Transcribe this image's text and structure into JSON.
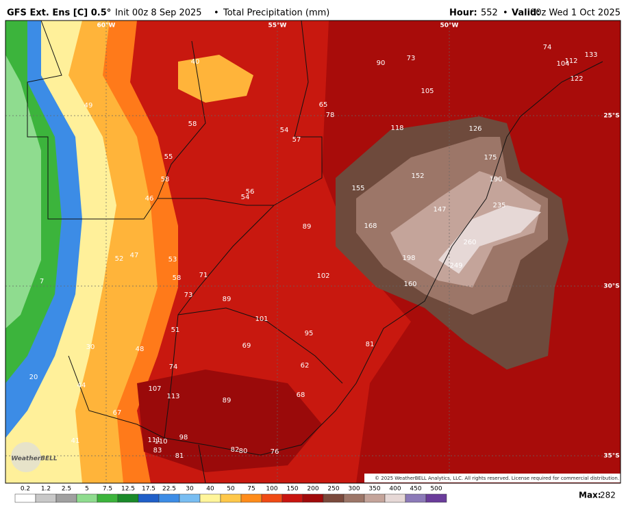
{
  "header": {
    "model": "GFS Ext. Ens [C] 0.5°",
    "init": "Init 00z 8 Sep 2025",
    "product": "Total Precipitation (mm)",
    "hour_label": "Hour:",
    "hour": 552,
    "valid_label": "Valid:",
    "valid": "00z Wed 1 Oct 2025",
    "separator": "•"
  },
  "graticule_labels": [
    "60°W",
    "55°W",
    "50°W",
    "25°S",
    "30°S",
    "35°S"
  ],
  "map_values": [
    40,
    49,
    58,
    55,
    58,
    46,
    54,
    57,
    56,
    54,
    65,
    78,
    90,
    73,
    74,
    133,
    104,
    112,
    122,
    105,
    118,
    126,
    175,
    152,
    155,
    190,
    235,
    147,
    168,
    89,
    260,
    198,
    249,
    52,
    47,
    53,
    58,
    71,
    102,
    160,
    7,
    73,
    89,
    101,
    95,
    51,
    81,
    30,
    48,
    69,
    62,
    74,
    20,
    44,
    107,
    113,
    89,
    68,
    67,
    41,
    111,
    110,
    98,
    83,
    82,
    80,
    76,
    81
  ],
  "logo": "WeatherBELL",
  "copyright": "© 2025 WeatherBELL Analytics, LLC. All rights reserved. License required for commercial distribution.",
  "colorbar": {
    "labels": [
      0.2,
      1.2,
      2.5,
      5,
      7.5,
      12.5,
      17.5,
      22.5,
      30,
      40,
      50,
      75,
      100,
      150,
      200,
      250,
      300,
      350,
      400,
      450,
      500
    ],
    "colors": [
      "#ffffff",
      "#c8c8c8",
      "#a0a0a0",
      "#8fdc8f",
      "#3cb43c",
      "#1a8a2a",
      "#1f5fc8",
      "#3c8ce6",
      "#78bdf2",
      "#fff59a",
      "#ffc84a",
      "#ff8c1a",
      "#f04a14",
      "#c8140f",
      "#a00a0a",
      "#7a4a3c",
      "#9c7668",
      "#c4a49a",
      "#e6d8d6",
      "#8c7ab8",
      "#6a3c9a"
    ]
  },
  "max_label": "Max:",
  "max": 282
}
